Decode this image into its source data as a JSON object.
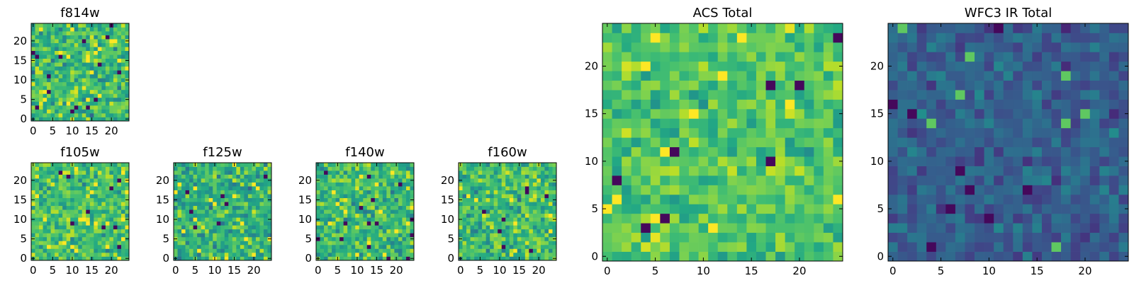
{
  "chart_data": [
    {
      "type": "heatmap",
      "title": "f814w",
      "grid_size": 25,
      "colormap": "viridis",
      "seed": 11,
      "value_range": [
        0,
        1
      ],
      "value_mean": 0.68,
      "value_spread": 0.16,
      "xlim": [
        -0.5,
        24.5
      ],
      "ylim": [
        -0.5,
        24.5
      ],
      "xticks": [
        "0",
        "5",
        "10",
        "15",
        "20"
      ],
      "yticks": [
        "0",
        "5",
        "10",
        "15",
        "20"
      ],
      "grid": false
    },
    {
      "type": "heatmap",
      "title": "f105w",
      "grid_size": 25,
      "colormap": "viridis",
      "seed": 23,
      "value_range": [
        0,
        1
      ],
      "value_mean": 0.7,
      "value_spread": 0.14,
      "xlim": [
        -0.5,
        24.5
      ],
      "ylim": [
        -0.5,
        24.5
      ],
      "xticks": [
        "0",
        "5",
        "10",
        "15",
        "20"
      ],
      "yticks": [
        "0",
        "5",
        "10",
        "15",
        "20"
      ],
      "grid": false
    },
    {
      "type": "heatmap",
      "title": "f125w",
      "grid_size": 25,
      "colormap": "viridis",
      "seed": 37,
      "value_range": [
        0,
        1
      ],
      "value_mean": 0.64,
      "value_spread": 0.15,
      "xlim": [
        -0.5,
        24.5
      ],
      "ylim": [
        -0.5,
        24.5
      ],
      "xticks": [
        "0",
        "5",
        "10",
        "15",
        "20"
      ],
      "yticks": [
        "0",
        "5",
        "10",
        "15",
        "20"
      ],
      "grid": false
    },
    {
      "type": "heatmap",
      "title": "f140w",
      "grid_size": 25,
      "colormap": "viridis",
      "seed": 41,
      "value_range": [
        0,
        1
      ],
      "value_mean": 0.67,
      "value_spread": 0.14,
      "xlim": [
        -0.5,
        24.5
      ],
      "ylim": [
        -0.5,
        24.5
      ],
      "xticks": [
        "0",
        "5",
        "10",
        "15",
        "20"
      ],
      "yticks": [
        "0",
        "5",
        "10",
        "15",
        "20"
      ],
      "grid": false
    },
    {
      "type": "heatmap",
      "title": "f160w",
      "grid_size": 25,
      "colormap": "viridis",
      "seed": 53,
      "value_range": [
        0,
        1
      ],
      "value_mean": 0.69,
      "value_spread": 0.15,
      "xlim": [
        -0.5,
        24.5
      ],
      "ylim": [
        -0.5,
        24.5
      ],
      "xticks": [
        "0",
        "5",
        "10",
        "15",
        "20"
      ],
      "yticks": [
        "0",
        "5",
        "10",
        "15",
        "20"
      ],
      "grid": false
    },
    {
      "type": "heatmap",
      "title": "ACS Total",
      "grid_size": 25,
      "colormap": "viridis",
      "seed": 67,
      "value_range": [
        0,
        1
      ],
      "value_mean": 0.73,
      "value_spread": 0.11,
      "xlim": [
        -0.5,
        24.5
      ],
      "ylim": [
        -0.5,
        24.5
      ],
      "xticks": [
        "0",
        "5",
        "10",
        "15",
        "20"
      ],
      "yticks": [
        "0",
        "5",
        "10",
        "15",
        "20"
      ],
      "grid": false
    },
    {
      "type": "heatmap",
      "title": "WFC3 IR Total",
      "grid_size": 25,
      "colormap": "viridis",
      "seed": 79,
      "value_range": [
        0,
        1
      ],
      "value_mean": 0.3,
      "value_spread": 0.09,
      "xlim": [
        -0.5,
        24.5
      ],
      "ylim": [
        -0.5,
        24.5
      ],
      "xticks": [
        "0",
        "5",
        "10",
        "15",
        "20"
      ],
      "yticks": [
        "0",
        "5",
        "10",
        "15",
        "20"
      ],
      "grid": false
    }
  ],
  "colors": {
    "frame": "#000000",
    "background": "#ffffff"
  }
}
